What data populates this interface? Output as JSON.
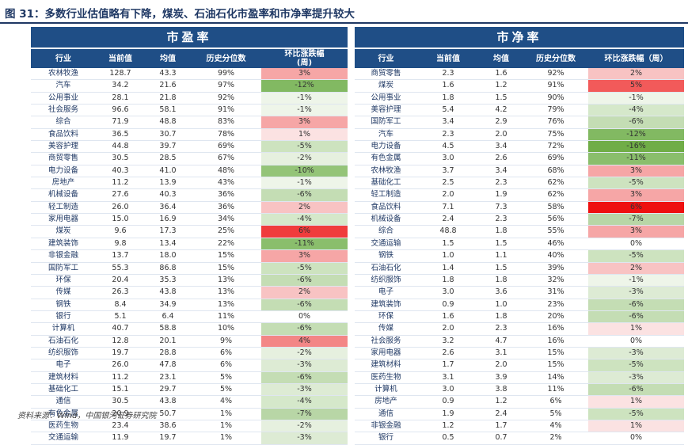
{
  "title": "图 31：多数行业估值略有下降，煤炭、石油石化市盈率和市净率提升较大",
  "source": "资料来源：Wind，中国银河证券研究院",
  "pe": {
    "header": "市盈率",
    "columns": [
      "行业",
      "当前值",
      "均值",
      "历史分位数",
      "环比涨跌幅\n(周)"
    ],
    "rows": [
      {
        "name": "农林牧渔",
        "cur": "128.7",
        "avg": "43.3",
        "pct": "99%",
        "chg": "3%",
        "color": "#f6a6a6"
      },
      {
        "name": "汽车",
        "cur": "34.2",
        "avg": "21.6",
        "pct": "97%",
        "chg": "-12%",
        "color": "#82b962"
      },
      {
        "name": "公用事业",
        "cur": "28.1",
        "avg": "21.8",
        "pct": "92%",
        "chg": "-1%",
        "color": "#eef5e9"
      },
      {
        "name": "社会服务",
        "cur": "96.6",
        "avg": "58.1",
        "pct": "91%",
        "chg": "-1%",
        "color": "#eef5e9"
      },
      {
        "name": "综合",
        "cur": "71.9",
        "avg": "48.8",
        "pct": "83%",
        "chg": "3%",
        "color": "#f6a6a6"
      },
      {
        "name": "食品饮料",
        "cur": "36.5",
        "avg": "30.7",
        "pct": "78%",
        "chg": "1%",
        "color": "#fbe2e2"
      },
      {
        "name": "美容护理",
        "cur": "44.8",
        "avg": "39.7",
        "pct": "69%",
        "chg": "-5%",
        "color": "#cde3bf"
      },
      {
        "name": "商贸零售",
        "cur": "30.5",
        "avg": "28.5",
        "pct": "67%",
        "chg": "-2%",
        "color": "#e6f0df"
      },
      {
        "name": "电力设备",
        "cur": "40.3",
        "avg": "41.0",
        "pct": "48%",
        "chg": "-10%",
        "color": "#94c478"
      },
      {
        "name": "房地产",
        "cur": "11.2",
        "avg": "13.9",
        "pct": "43%",
        "chg": "-1%",
        "color": "#eef5e9"
      },
      {
        "name": "机械设备",
        "cur": "27.6",
        "avg": "40.3",
        "pct": "36%",
        "chg": "-6%",
        "color": "#c4ddb4"
      },
      {
        "name": "轻工制造",
        "cur": "26.0",
        "avg": "36.4",
        "pct": "36%",
        "chg": "2%",
        "color": "#f8c3c3"
      },
      {
        "name": "家用电器",
        "cur": "15.0",
        "avg": "16.9",
        "pct": "34%",
        "chg": "-4%",
        "color": "#d5e8ca"
      },
      {
        "name": "煤炭",
        "cur": "9.6",
        "avg": "17.3",
        "pct": "25%",
        "chg": "6%",
        "color": "#f03c3c"
      },
      {
        "name": "建筑装饰",
        "cur": "9.8",
        "avg": "13.4",
        "pct": "22%",
        "chg": "-11%",
        "color": "#8abe6c"
      },
      {
        "name": "非银金融",
        "cur": "13.7",
        "avg": "18.0",
        "pct": "15%",
        "chg": "3%",
        "color": "#f6a6a6"
      },
      {
        "name": "国防军工",
        "cur": "55.3",
        "avg": "86.8",
        "pct": "15%",
        "chg": "-5%",
        "color": "#cde3bf"
      },
      {
        "name": "环保",
        "cur": "20.4",
        "avg": "35.3",
        "pct": "13%",
        "chg": "-6%",
        "color": "#c4ddb4"
      },
      {
        "name": "传媒",
        "cur": "26.3",
        "avg": "43.8",
        "pct": "13%",
        "chg": "2%",
        "color": "#f8c3c3"
      },
      {
        "name": "钢铁",
        "cur": "8.4",
        "avg": "34.9",
        "pct": "13%",
        "chg": "-6%",
        "color": "#c4ddb4"
      },
      {
        "name": "银行",
        "cur": "5.1",
        "avg": "6.4",
        "pct": "11%",
        "chg": "0%",
        "color": "#ffffff"
      },
      {
        "name": "计算机",
        "cur": "40.7",
        "avg": "58.8",
        "pct": "10%",
        "chg": "-6%",
        "color": "#c4ddb4"
      },
      {
        "name": "石油石化",
        "cur": "12.8",
        "avg": "20.1",
        "pct": "9%",
        "chg": "4%",
        "color": "#f38686"
      },
      {
        "name": "纺织服饰",
        "cur": "19.7",
        "avg": "28.8",
        "pct": "6%",
        "chg": "-2%",
        "color": "#e6f0df"
      },
      {
        "name": "电子",
        "cur": "26.0",
        "avg": "47.8",
        "pct": "6%",
        "chg": "-3%",
        "color": "#ddebd4"
      },
      {
        "name": "建筑材料",
        "cur": "11.2",
        "avg": "23.1",
        "pct": "5%",
        "chg": "-6%",
        "color": "#c4ddb4"
      },
      {
        "name": "基础化工",
        "cur": "15.1",
        "avg": "29.7",
        "pct": "5%",
        "chg": "-3%",
        "color": "#ddebd4"
      },
      {
        "name": "通信",
        "cur": "30.5",
        "avg": "43.8",
        "pct": "4%",
        "chg": "-4%",
        "color": "#d5e8ca"
      },
      {
        "name": "有色金属",
        "cur": "20.9",
        "avg": "50.7",
        "pct": "1%",
        "chg": "-7%",
        "color": "#b8d6a6"
      },
      {
        "name": "医药生物",
        "cur": "23.4",
        "avg": "38.6",
        "pct": "1%",
        "chg": "-2%",
        "color": "#e6f0df"
      },
      {
        "name": "交通运输",
        "cur": "11.9",
        "avg": "19.7",
        "pct": "1%",
        "chg": "-3%",
        "color": "#ddebd4"
      }
    ]
  },
  "pb": {
    "header": "市净率",
    "columns": [
      "行业",
      "当前值",
      "均值",
      "历史分位数",
      "环比涨跌幅（周）"
    ],
    "rows": [
      {
        "name": "商贸零售",
        "cur": "2.3",
        "avg": "1.6",
        "pct": "92%",
        "chg": "2%",
        "color": "#f8c3c3"
      },
      {
        "name": "煤炭",
        "cur": "1.6",
        "avg": "1.2",
        "pct": "91%",
        "chg": "5%",
        "color": "#f25a5a"
      },
      {
        "name": "公用事业",
        "cur": "1.8",
        "avg": "1.5",
        "pct": "90%",
        "chg": "-1%",
        "color": "#eef5e9"
      },
      {
        "name": "美容护理",
        "cur": "5.4",
        "avg": "4.2",
        "pct": "79%",
        "chg": "-4%",
        "color": "#d5e8ca"
      },
      {
        "name": "国防军工",
        "cur": "3.4",
        "avg": "2.9",
        "pct": "76%",
        "chg": "-6%",
        "color": "#c4ddb4"
      },
      {
        "name": "汽车",
        "cur": "2.3",
        "avg": "2.0",
        "pct": "75%",
        "chg": "-12%",
        "color": "#82b962"
      },
      {
        "name": "电力设备",
        "cur": "4.5",
        "avg": "3.4",
        "pct": "72%",
        "chg": "-16%",
        "color": "#70ad47"
      },
      {
        "name": "有色金属",
        "cur": "3.0",
        "avg": "2.6",
        "pct": "69%",
        "chg": "-11%",
        "color": "#8abe6c"
      },
      {
        "name": "农林牧渔",
        "cur": "3.7",
        "avg": "3.4",
        "pct": "68%",
        "chg": "3%",
        "color": "#f6a6a6"
      },
      {
        "name": "基础化工",
        "cur": "2.5",
        "avg": "2.3",
        "pct": "62%",
        "chg": "-5%",
        "color": "#cde3bf"
      },
      {
        "name": "轻工制造",
        "cur": "2.0",
        "avg": "1.9",
        "pct": "62%",
        "chg": "3%",
        "color": "#f6a6a6"
      },
      {
        "name": "食品饮料",
        "cur": "7.1",
        "avg": "7.3",
        "pct": "58%",
        "chg": "6%",
        "color": "#ee1010"
      },
      {
        "name": "机械设备",
        "cur": "2.4",
        "avg": "2.3",
        "pct": "56%",
        "chg": "-7%",
        "color": "#b8d6a6"
      },
      {
        "name": "综合",
        "cur": "48.8",
        "avg": "1.8",
        "pct": "55%",
        "chg": "3%",
        "color": "#f6a6a6"
      },
      {
        "name": "交通运输",
        "cur": "1.5",
        "avg": "1.5",
        "pct": "46%",
        "chg": "0%",
        "color": "#ffffff"
      },
      {
        "name": "钢铁",
        "cur": "1.0",
        "avg": "1.1",
        "pct": "40%",
        "chg": "-5%",
        "color": "#cde3bf"
      },
      {
        "name": "石油石化",
        "cur": "1.4",
        "avg": "1.5",
        "pct": "39%",
        "chg": "2%",
        "color": "#f8c3c3"
      },
      {
        "name": "纺织服饰",
        "cur": "1.8",
        "avg": "1.8",
        "pct": "32%",
        "chg": "-1%",
        "color": "#eef5e9"
      },
      {
        "name": "电子",
        "cur": "3.0",
        "avg": "3.6",
        "pct": "31%",
        "chg": "-3%",
        "color": "#ddebd4"
      },
      {
        "name": "建筑装饰",
        "cur": "0.9",
        "avg": "1.0",
        "pct": "23%",
        "chg": "-6%",
        "color": "#c4ddb4"
      },
      {
        "name": "环保",
        "cur": "1.6",
        "avg": "1.8",
        "pct": "20%",
        "chg": "-6%",
        "color": "#c4ddb4"
      },
      {
        "name": "传媒",
        "cur": "2.0",
        "avg": "2.3",
        "pct": "16%",
        "chg": "1%",
        "color": "#fbe2e2"
      },
      {
        "name": "社会服务",
        "cur": "3.2",
        "avg": "4.7",
        "pct": "16%",
        "chg": "0%",
        "color": "#ffffff"
      },
      {
        "name": "家用电器",
        "cur": "2.6",
        "avg": "3.1",
        "pct": "15%",
        "chg": "-3%",
        "color": "#ddebd4"
      },
      {
        "name": "建筑材料",
        "cur": "1.7",
        "avg": "2.0",
        "pct": "15%",
        "chg": "-5%",
        "color": "#cde3bf"
      },
      {
        "name": "医药生物",
        "cur": "3.1",
        "avg": "3.9",
        "pct": "14%",
        "chg": "-3%",
        "color": "#ddebd4"
      },
      {
        "name": "计算机",
        "cur": "3.0",
        "avg": "3.8",
        "pct": "11%",
        "chg": "-6%",
        "color": "#c4ddb4"
      },
      {
        "name": "房地产",
        "cur": "0.9",
        "avg": "1.2",
        "pct": "6%",
        "chg": "1%",
        "color": "#fbe2e2"
      },
      {
        "name": "通信",
        "cur": "1.9",
        "avg": "2.4",
        "pct": "5%",
        "chg": "-5%",
        "color": "#cde3bf"
      },
      {
        "name": "非银金融",
        "cur": "1.2",
        "avg": "1.7",
        "pct": "4%",
        "chg": "1%",
        "color": "#fbe2e2"
      },
      {
        "name": "银行",
        "cur": "0.5",
        "avg": "0.7",
        "pct": "2%",
        "chg": "0%",
        "color": "#ffffff"
      }
    ]
  }
}
